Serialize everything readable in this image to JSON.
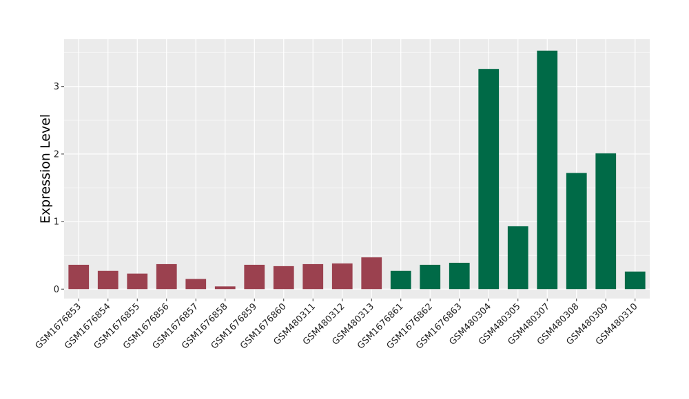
{
  "chart_data": {
    "type": "bar",
    "title": "",
    "xlabel": "",
    "ylabel": "Expression Level",
    "ylim": [
      -0.14,
      3.7
    ],
    "yticks": [
      0,
      1,
      2,
      3
    ],
    "grid": true,
    "legend": "none",
    "colors": {
      "group_a": "#9b414f",
      "group_b": "#006a47",
      "panel_bg": "#ebebeb",
      "grid": "#ffffff"
    },
    "categories": [
      "GSM1676853",
      "GSM1676854",
      "GSM1676855",
      "GSM1676856",
      "GSM1676857",
      "GSM1676858",
      "GSM1676859",
      "GSM1676860",
      "GSM480311",
      "GSM480312",
      "GSM480313",
      "GSM1676861",
      "GSM1676862",
      "GSM1676863",
      "GSM480304",
      "GSM480305",
      "GSM480307",
      "GSM480308",
      "GSM480309",
      "GSM480310"
    ],
    "values": [
      0.36,
      0.27,
      0.23,
      0.37,
      0.15,
      0.04,
      0.36,
      0.34,
      0.37,
      0.38,
      0.47,
      0.27,
      0.36,
      0.39,
      3.26,
      0.93,
      3.53,
      1.72,
      2.01,
      0.26
    ],
    "groups": [
      "a",
      "a",
      "a",
      "a",
      "a",
      "a",
      "a",
      "a",
      "a",
      "a",
      "a",
      "b",
      "b",
      "b",
      "b",
      "b",
      "b",
      "b",
      "b",
      "b"
    ]
  }
}
